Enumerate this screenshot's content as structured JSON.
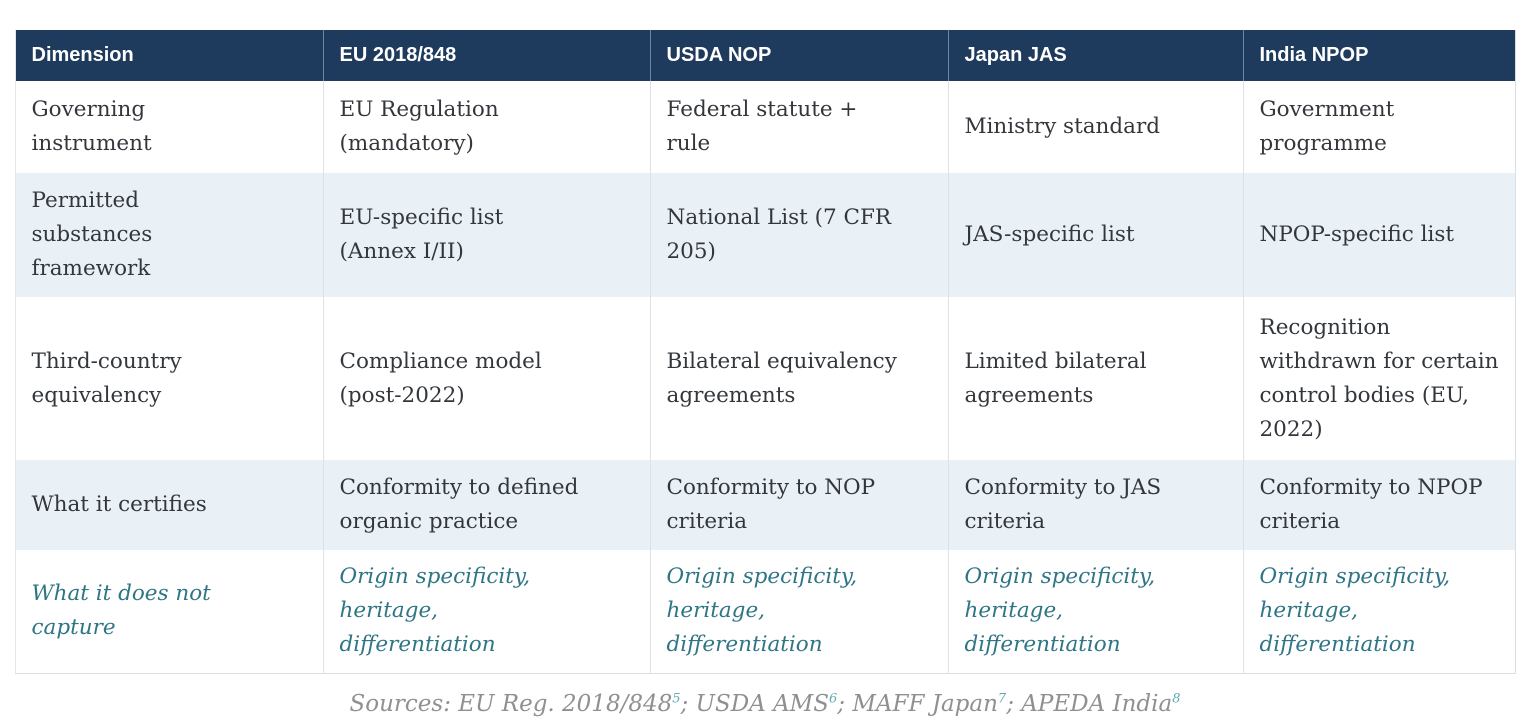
{
  "table": {
    "columns": [
      {
        "label": "Dimension"
      },
      {
        "label": "EU 2018/848"
      },
      {
        "label": "USDA NOP"
      },
      {
        "label": "Japan JAS"
      },
      {
        "label": "India NPOP"
      }
    ],
    "rows": [
      {
        "cells": [
          "Governing\ninstrument",
          "EU Regulation\n(mandatory)",
          "Federal statute +\nrule",
          "Ministry standard",
          "Government\nprogramme"
        ]
      },
      {
        "cells": [
          "Permitted\nsubstances\nframework",
          "EU-specific list\n(Annex I/II)",
          "National List (7 CFR\n205)",
          "JAS-specific list",
          "NPOP-specific list"
        ]
      },
      {
        "cells": [
          "Third-country\nequivalency",
          "Compliance model\n(post-2022)",
          "Bilateral equivalency\nagreements",
          "Limited bilateral\nagreements",
          "Recognition\nwithdrawn for certain\ncontrol bodies (EU,\n2022)"
        ]
      },
      {
        "cells": [
          "What it certifies",
          "Conformity to defined\norganic practice",
          "Conformity to NOP\ncriteria",
          "Conformity to JAS\ncriteria",
          "Conformity to NPOP\ncriteria"
        ]
      },
      {
        "cells": [
          "What it does not\ncapture",
          "Origin specificity,\nheritage,\ndifferentiation",
          "Origin specificity,\nheritage,\ndifferentiation",
          "Origin specificity,\nheritage,\ndifferentiation",
          "Origin specificity,\nheritage,\ndifferentiation"
        ]
      }
    ]
  },
  "footer": {
    "segments": [
      {
        "text": "Sources: EU Reg. 2018/848",
        "sup": "5"
      },
      {
        "text": "; USDA AMS",
        "sup": "6"
      },
      {
        "text": "; MAFF Japan",
        "sup": "7"
      },
      {
        "text": "; APEDA India",
        "sup": "8"
      }
    ]
  },
  "colors": {
    "header_bg": "#1e3a5c",
    "header_text": "#ffffff",
    "alt_row_bg": "#eaf1f6",
    "body_text": "#33373c",
    "accent_teal": "#2e7585",
    "footnote_ref": "#5fa9ba",
    "sources_text": "#8e9093"
  }
}
